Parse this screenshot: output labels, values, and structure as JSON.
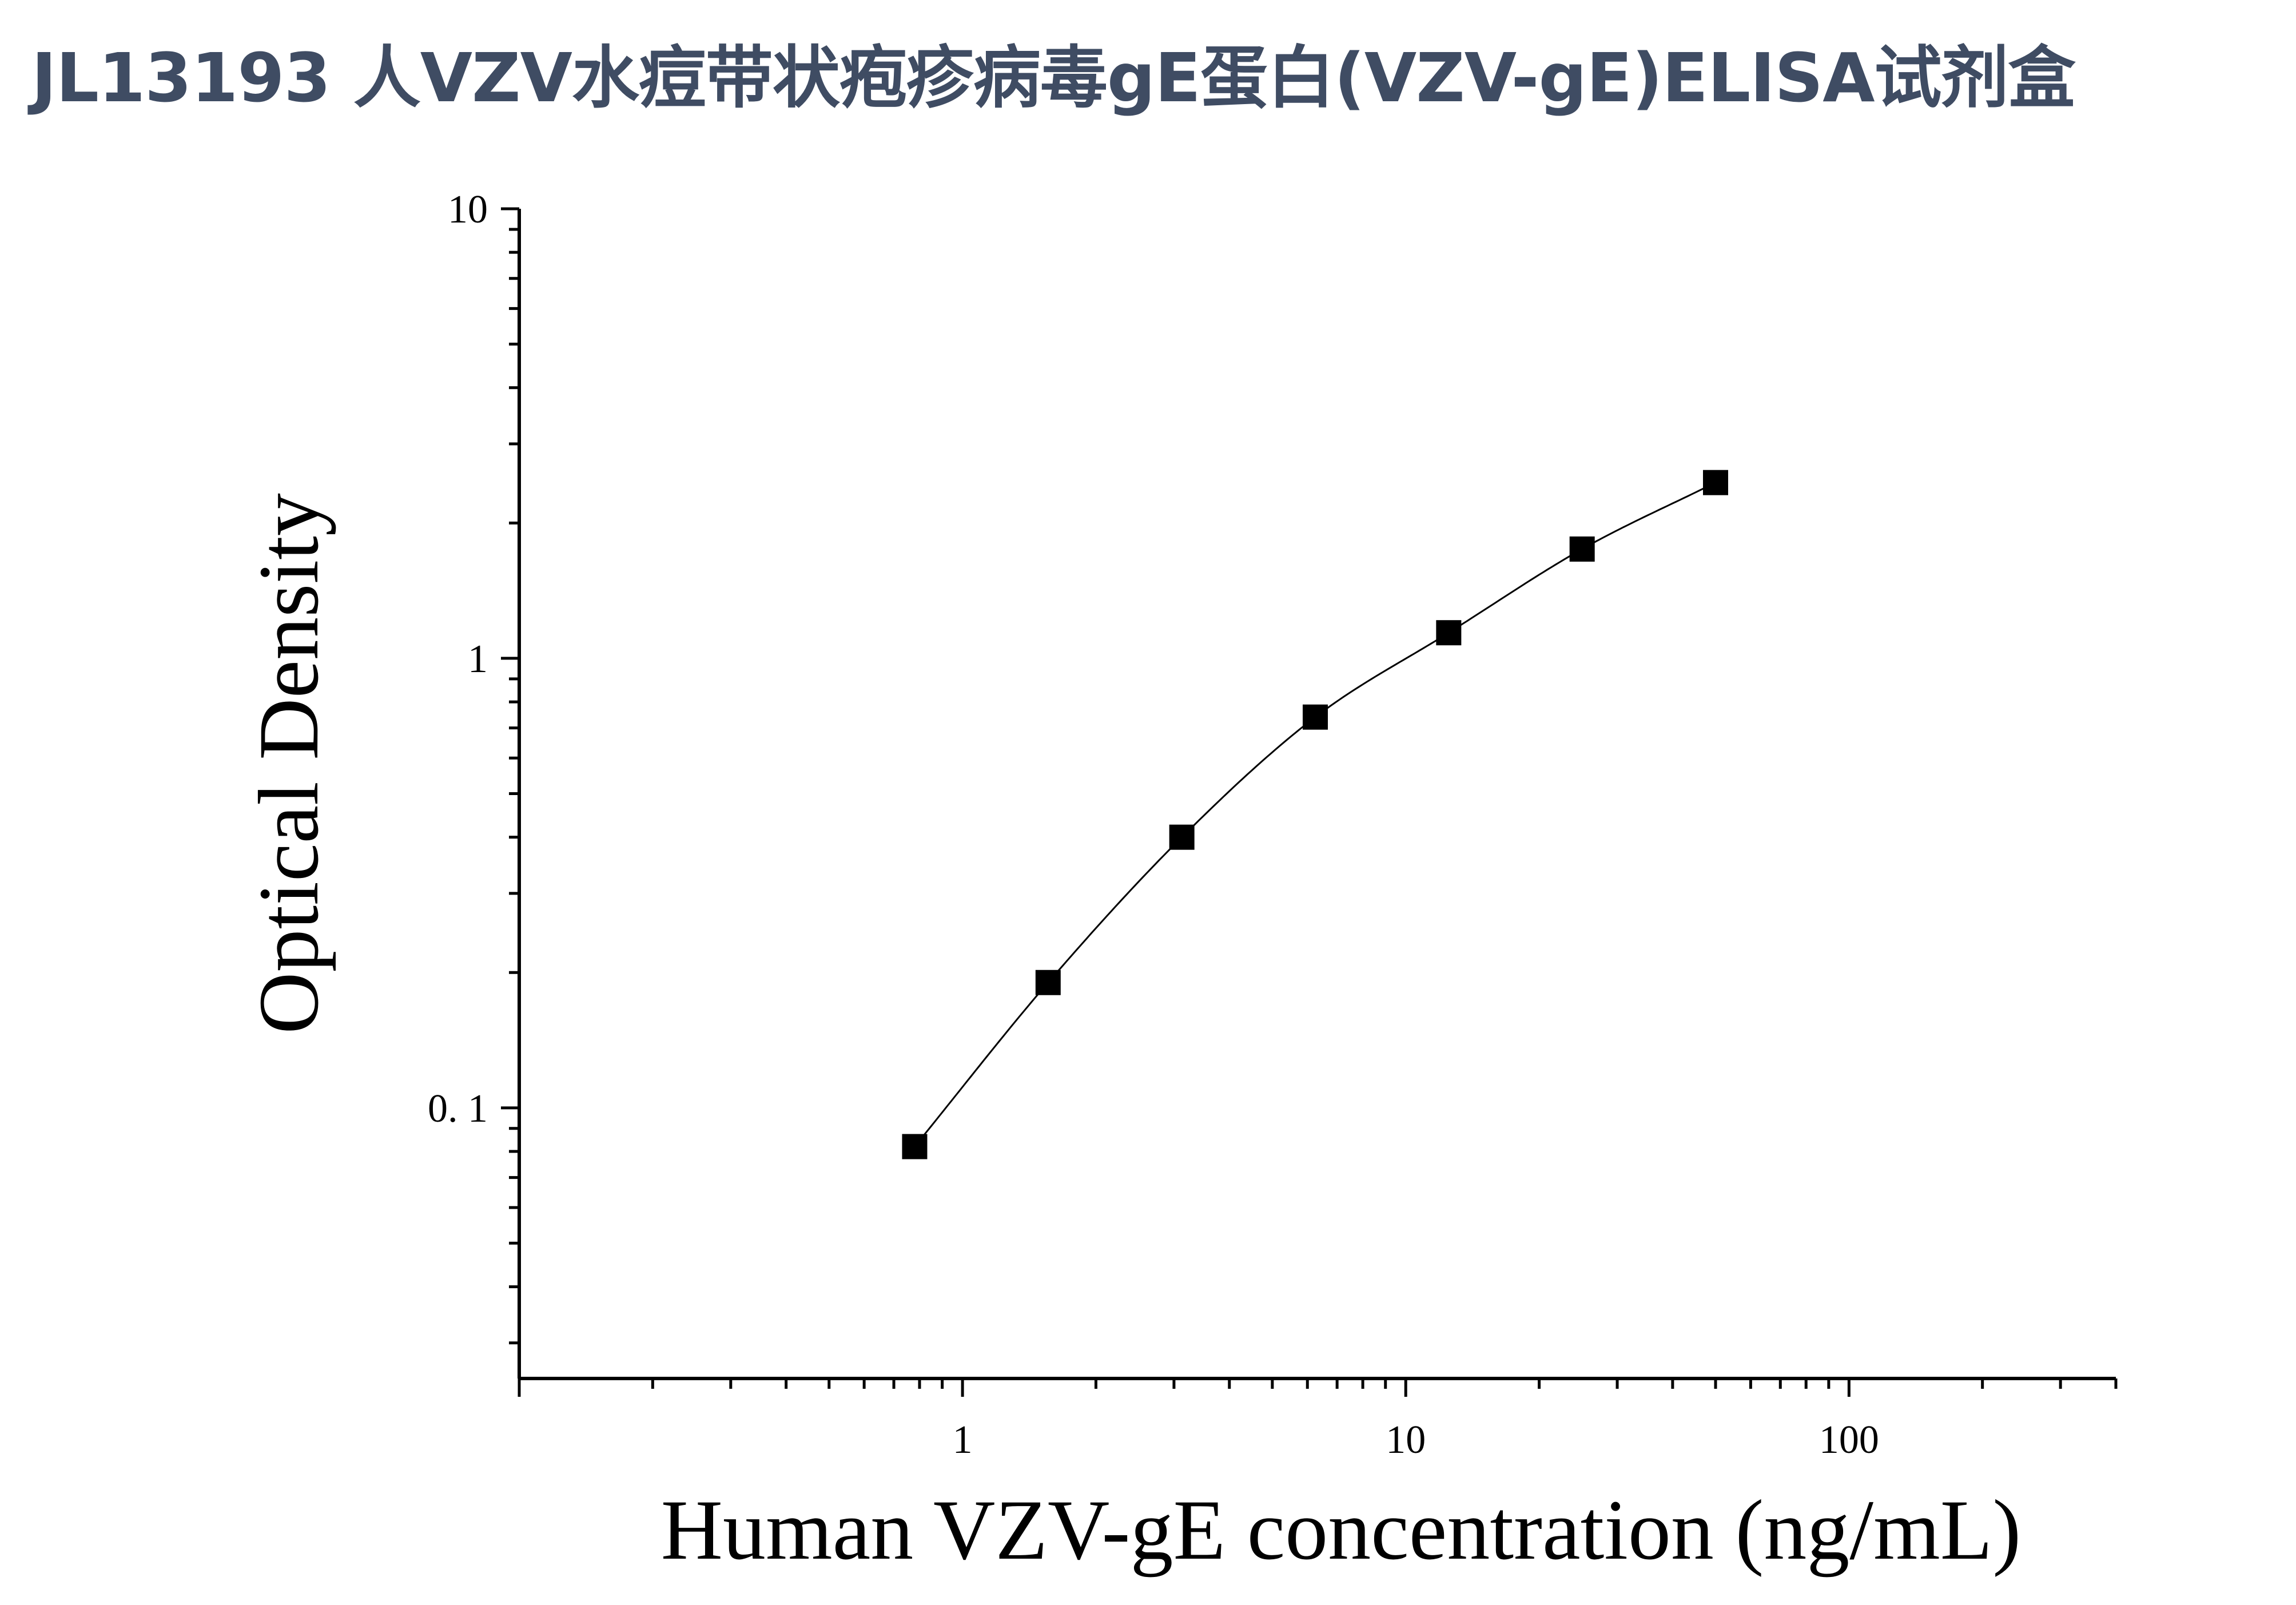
{
  "chart_data": {
    "type": "scatter",
    "title": "JL13193 人VZV水痘带状疱疹病毒gE蛋白(VZV-gE)ELISA试剂盒",
    "xlabel": "Human VZV-gE concentration (ng/mL)",
    "ylabel": "Optical Density",
    "x_scale": "log",
    "y_scale": "log",
    "xlim": [
      0.1,
      400
    ],
    "ylim": [
      0.025,
      10
    ],
    "x_ticks": [
      {
        "value": 1,
        "label": "1"
      },
      {
        "value": 10,
        "label": "10"
      },
      {
        "value": 100,
        "label": "100"
      }
    ],
    "y_ticks": [
      {
        "value": 0.1,
        "label": "0. 1"
      },
      {
        "value": 1,
        "label": "1"
      },
      {
        "value": 10,
        "label": "10"
      }
    ],
    "grid": false,
    "series": [
      {
        "marker": "square",
        "color": "#000000",
        "x": [
          0.78,
          1.56,
          3.125,
          6.25,
          12.5,
          25,
          50
        ],
        "y": [
          0.082,
          0.19,
          0.4,
          0.74,
          1.14,
          1.75,
          2.46
        ]
      }
    ],
    "fit_curve": {
      "color": "#000000",
      "x_range": [
        0.8,
        50
      ]
    }
  }
}
